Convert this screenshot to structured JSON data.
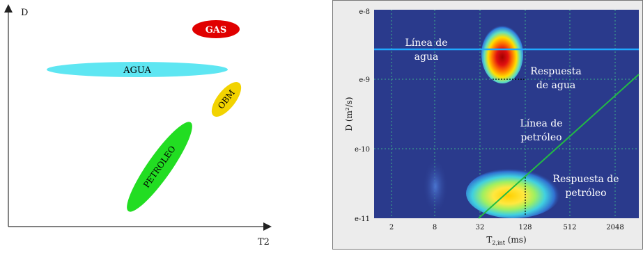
{
  "left_diagram": {
    "y_axis_label": "D",
    "x_axis_label": "T2",
    "regions": [
      {
        "label": "GAS",
        "color": "#e00000",
        "text_color": "#ffffff"
      },
      {
        "label": "AGUA",
        "color": "#5ee6f2",
        "text_color": "#000000"
      },
      {
        "label": "OBM",
        "color": "#f2d300",
        "text_color": "#000000"
      },
      {
        "label": "PETROLEO",
        "color": "#22dd22",
        "text_color": "#000000"
      }
    ]
  },
  "right_plot": {
    "y_axis_label": "D (m²/s)",
    "x_axis_label_main": "T",
    "x_axis_label_sub": "2,int",
    "x_axis_label_unit": " (ms)",
    "y_ticks": [
      "e-8",
      "e-9",
      "e-10",
      "e-11"
    ],
    "x_ticks": [
      "2",
      "8",
      "32",
      "128",
      "512",
      "2048"
    ],
    "annotations": {
      "water_line_1": "Línea de",
      "water_line_2": "agua",
      "water_resp_1": "Respuesta",
      "water_resp_2": "de agua",
      "oil_line_1": "Línea de",
      "oil_line_2": "petróleo",
      "oil_resp_1": "Respuesta de",
      "oil_resp_2": "petróleo"
    },
    "colors": {
      "background": "#2a3a8c",
      "water_line": "#1fa8ff",
      "oil_line": "#22bb44"
    }
  }
}
